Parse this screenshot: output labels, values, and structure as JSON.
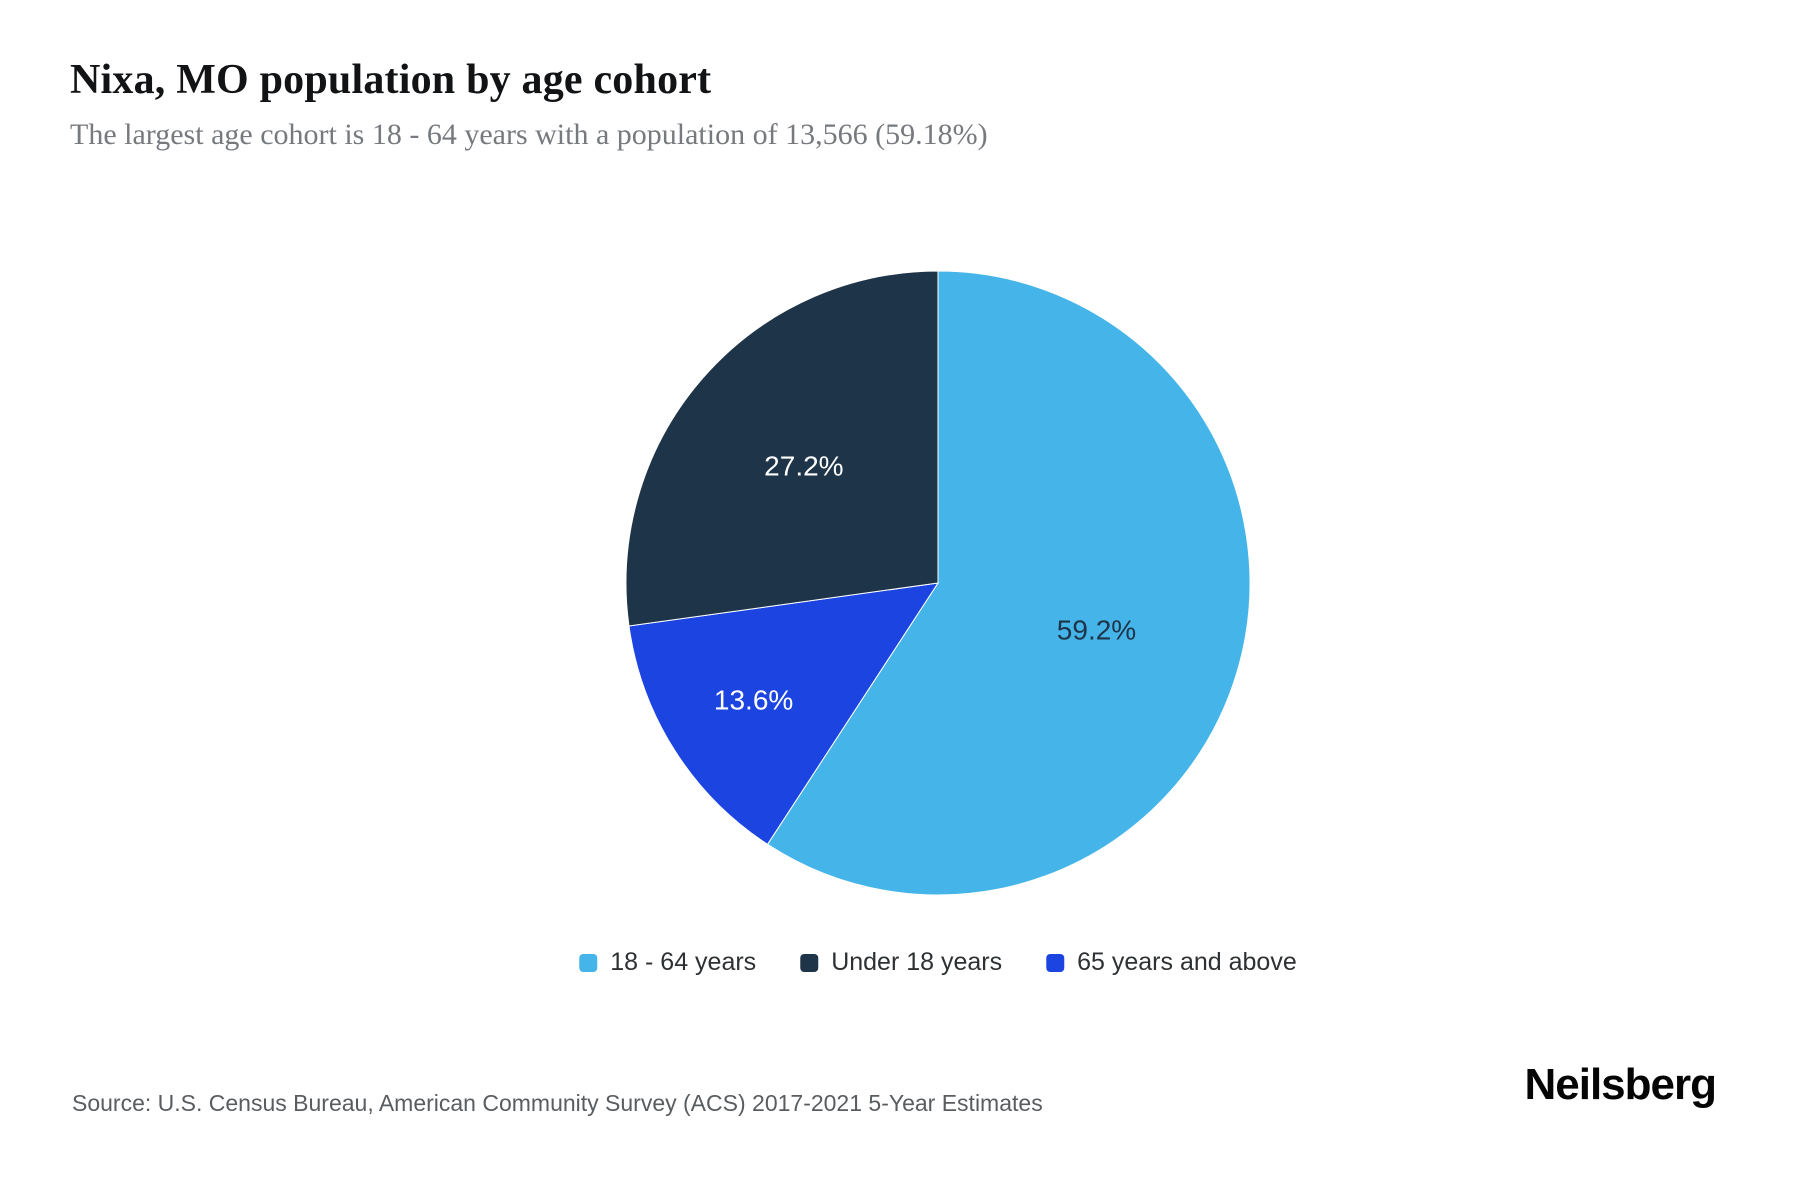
{
  "header": {
    "title": "Nixa, MO population by age cohort",
    "subtitle": "The largest age cohort is 18 - 64 years with a population of 13,566 (59.18%)"
  },
  "chart_data": {
    "type": "pie",
    "title": "Nixa, MO population by age cohort",
    "direction": "clockwise",
    "start_angle_deg": 0,
    "legend_position": "bottom-center",
    "slices": [
      {
        "label": "18 - 64 years",
        "pct": 59.2,
        "display": "59.2%",
        "color": "#45b5e9",
        "text_color": "#1e3448"
      },
      {
        "label": "65 years and above",
        "pct": 13.6,
        "display": "13.6%",
        "color": "#1b44e0",
        "text_color": "#ffffff"
      },
      {
        "label": "Under 18 years",
        "pct": 27.2,
        "display": "27.2%",
        "color": "#1e3448",
        "text_color": "#ffffff"
      }
    ],
    "highlighted_value": {
      "label": "18 - 64 years",
      "population": "13,566",
      "pct_precise": "59.18%"
    }
  },
  "legend": {
    "items": [
      {
        "label": "18 - 64 years",
        "color": "#45b5e9"
      },
      {
        "label": "Under 18 years",
        "color": "#1e3448"
      },
      {
        "label": "65 years and above",
        "color": "#1b44e0"
      }
    ]
  },
  "footer": {
    "source": "Source: U.S. Census Bureau, American Community Survey (ACS) 2017-2021 5-Year Estimates",
    "brand": "Neilsberg"
  }
}
